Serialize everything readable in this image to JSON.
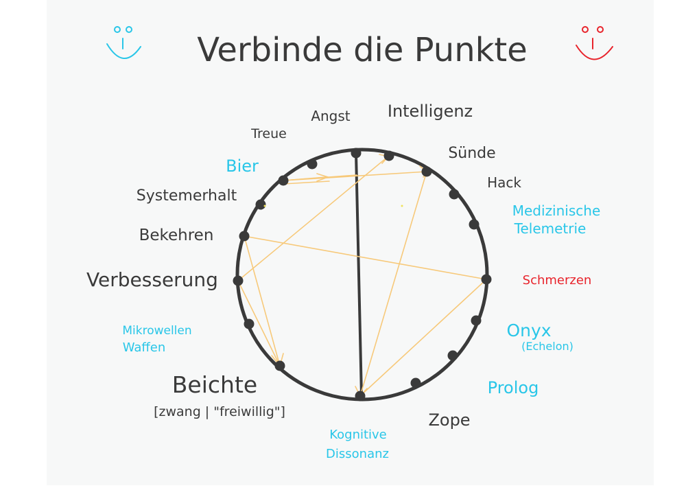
{
  "title": "Verbinde die Punkte",
  "colors": {
    "paper": "#f7f8f8",
    "ink": "#3a3a3a",
    "accent": "#29c6e8",
    "red": "#e8242c",
    "line": "#f7c97a"
  },
  "smileys": [
    {
      "name": "smiley-left",
      "color": "#29c6e8"
    },
    {
      "name": "smiley-right",
      "color": "#e8242c"
    }
  ],
  "labels": [
    {
      "id": "angst",
      "text": "Angst",
      "color": "#3a3a3a"
    },
    {
      "id": "intelligenz",
      "text": "Intelligenz",
      "color": "#3a3a3a"
    },
    {
      "id": "treue",
      "text": "Treue",
      "color": "#3a3a3a"
    },
    {
      "id": "suende",
      "text": "Sünde",
      "color": "#3a3a3a"
    },
    {
      "id": "bier",
      "text": "Bier",
      "color": "#29c6e8"
    },
    {
      "id": "hack",
      "text": "Hack",
      "color": "#3a3a3a"
    },
    {
      "id": "systemerhalt",
      "text": "Systemerhalt",
      "color": "#3a3a3a"
    },
    {
      "id": "medizinische-1",
      "text": "Medizinische",
      "color": "#29c6e8"
    },
    {
      "id": "medizinische-2",
      "text": "Telemetrie",
      "color": "#29c6e8"
    },
    {
      "id": "bekehren",
      "text": "Bekehren",
      "color": "#3a3a3a"
    },
    {
      "id": "verbesserung",
      "text": "Verbesserung",
      "color": "#3a3a3a"
    },
    {
      "id": "schmerzen",
      "text": "Schmerzen",
      "color": "#e8242c"
    },
    {
      "id": "mikrowellen-1",
      "text": "Mikrowellen",
      "color": "#29c6e8"
    },
    {
      "id": "mikrowellen-2",
      "text": "Waffen",
      "color": "#29c6e8"
    },
    {
      "id": "onyx-1",
      "text": "Onyx",
      "color": "#29c6e8"
    },
    {
      "id": "onyx-2",
      "text": "(Echelon)",
      "color": "#29c6e8"
    },
    {
      "id": "prolog",
      "text": "Prolog",
      "color": "#29c6e8"
    },
    {
      "id": "beichte-1",
      "text": "Beichte",
      "color": "#3a3a3a"
    },
    {
      "id": "beichte-2",
      "text": "[zwang | \"freiwillig\"]",
      "color": "#3a3a3a"
    },
    {
      "id": "zope",
      "text": "Zope",
      "color": "#3a3a3a"
    },
    {
      "id": "kognitive-1",
      "text": "Kognitive",
      "color": "#29c6e8"
    },
    {
      "id": "kognitive-2",
      "text": "Dissonanz",
      "color": "#29c6e8"
    }
  ]
}
